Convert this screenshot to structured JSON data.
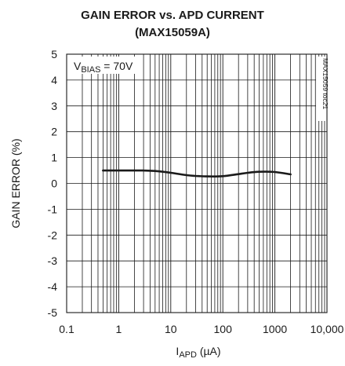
{
  "chart_data": {
    "type": "line",
    "title": "GAIN ERROR vs. APD CURRENT",
    "subtitle": "(MAX15059A)",
    "xlabel": "I",
    "xlabel_sub": "APD",
    "xlabel_unit": " (µA)",
    "ylabel": "GAIN ERROR (%)",
    "x_scale": "log",
    "xlim": [
      0.1,
      10000
    ],
    "ylim": [
      -5,
      5
    ],
    "x_tick_values": [
      0.1,
      1,
      10,
      100,
      1000,
      10000
    ],
    "x_tick_labels": [
      "0.1",
      "1",
      "10",
      "100",
      "1000",
      "10,000"
    ],
    "y_tick_values": [
      5,
      4,
      3,
      2,
      1,
      0,
      -1,
      -2,
      -3,
      -4,
      -5
    ],
    "y_tick_labels": [
      "5",
      "4",
      "3",
      "2",
      "1",
      "0",
      "-1",
      "-2",
      "-3",
      "-4",
      "-5"
    ],
    "grid": true,
    "annotation": {
      "main": "V",
      "sub": "BIAS",
      "rest": " = 70V"
    },
    "watermark": "MAX15059 toc21",
    "series": [
      {
        "x": [
          0.5,
          1,
          2,
          3,
          5,
          10,
          20,
          30,
          50,
          100,
          200,
          300,
          500,
          1000,
          2000
        ],
        "y": [
          0.5,
          0.5,
          0.5,
          0.5,
          0.48,
          0.41,
          0.32,
          0.29,
          0.27,
          0.28,
          0.36,
          0.41,
          0.45,
          0.44,
          0.35
        ]
      }
    ]
  },
  "colors": {
    "line": "#1a1a1a",
    "grid": "#1a1a1a"
  }
}
